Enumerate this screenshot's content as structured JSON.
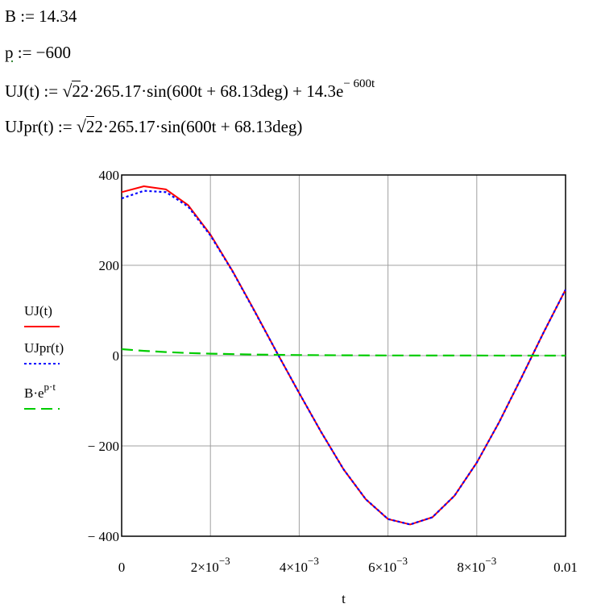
{
  "equations": {
    "line1": "B := 14.34",
    "line2_var": "p",
    "line2_rest": " := −600",
    "line3_pre": "UJ(t) := ",
    "line3_mid": "2·265.17·sin(600t + 68.13deg) + 14.3e",
    "line3_sup": "− 600t",
    "line4_pre": "UJpr(t) := ",
    "line4_mid": "2·265.17·sin(600t + 68.13deg)",
    "sqrt_symbol": "√",
    "sqrt_arg": "2"
  },
  "chart_data": {
    "type": "line",
    "xlabel": "t",
    "ylabel": "",
    "xlim": [
      0,
      0.01
    ],
    "ylim": [
      -400,
      400
    ],
    "grid": true,
    "legend_position": "left",
    "x_ticks": [
      {
        "value": 0,
        "label": "0",
        "sup": ""
      },
      {
        "value": 0.002,
        "label": "2×10",
        "sup": "−3"
      },
      {
        "value": 0.004,
        "label": "4×10",
        "sup": "−3"
      },
      {
        "value": 0.006,
        "label": "6×10",
        "sup": "−3"
      },
      {
        "value": 0.008,
        "label": "8×10",
        "sup": "−3"
      },
      {
        "value": 0.01,
        "label": "0.01",
        "sup": ""
      }
    ],
    "y_ticks": [
      {
        "value": 400,
        "label": "400"
      },
      {
        "value": 200,
        "label": "200"
      },
      {
        "value": 0,
        "label": "0"
      },
      {
        "value": -200,
        "label": "− 200"
      },
      {
        "value": -400,
        "label": "− 400"
      }
    ],
    "series": [
      {
        "name": "UJ(t)",
        "color": "#ff0000",
        "style": "solid",
        "x": [
          0,
          0.0005,
          0.001,
          0.0015,
          0.002,
          0.0025,
          0.003,
          0.0035,
          0.004,
          0.0045,
          0.005,
          0.0055,
          0.006,
          0.0065,
          0.007,
          0.0075,
          0.008,
          0.0085,
          0.009,
          0.0095,
          0.01
        ],
        "values": [
          362,
          375,
          368,
          333,
          268,
          187,
          98,
          6,
          -83,
          -170,
          -252,
          -318,
          -362,
          -374,
          -358,
          -310,
          -237,
          -148,
          -50,
          50,
          146
        ]
      },
      {
        "name": "UJpr(t)",
        "color": "#0000ff",
        "style": "dotted",
        "x": [
          0,
          0.0005,
          0.001,
          0.0015,
          0.002,
          0.0025,
          0.003,
          0.0035,
          0.004,
          0.0045,
          0.005,
          0.0055,
          0.006,
          0.0065,
          0.007,
          0.0075,
          0.008,
          0.0085,
          0.009,
          0.0095,
          0.01
        ],
        "values": [
          348,
          365,
          362,
          330,
          266,
          186,
          97,
          6,
          -83,
          -170,
          -252,
          -318,
          -362,
          -374,
          -358,
          -310,
          -237,
          -148,
          -50,
          50,
          146
        ]
      },
      {
        "name": "B·e",
        "name_sup": "p·t",
        "color": "#00cc00",
        "style": "dashed",
        "x": [
          0,
          0.0005,
          0.001,
          0.0015,
          0.002,
          0.003,
          0.004,
          0.005,
          0.006,
          0.007,
          0.008,
          0.009,
          0.01
        ],
        "values": [
          14.34,
          10.6,
          7.9,
          5.8,
          4.3,
          2.4,
          1.3,
          0.7,
          0.4,
          0.2,
          0.1,
          0.06,
          0.04
        ]
      }
    ]
  }
}
